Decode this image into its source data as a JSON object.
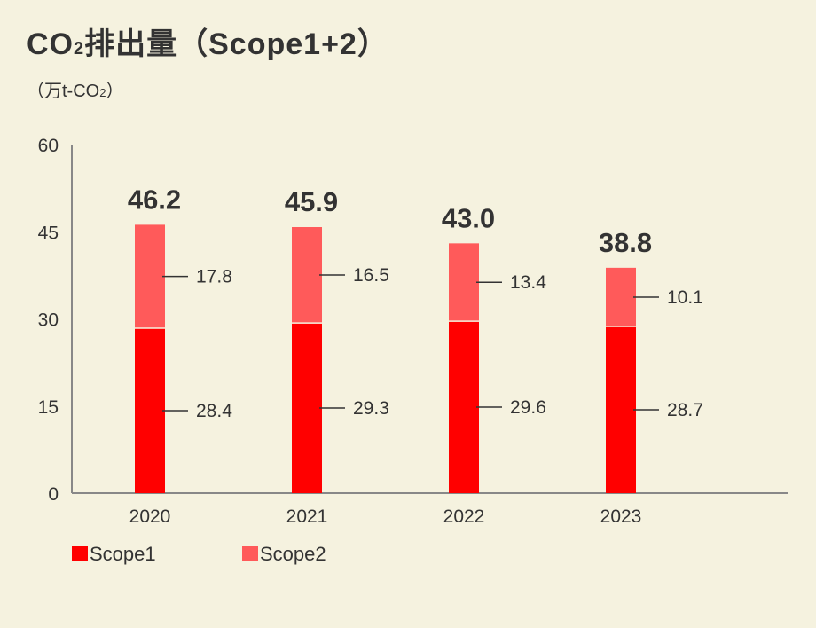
{
  "title_main": "CO",
  "title_sub": "2",
  "title_rest": "排出量（Scope1+2）",
  "unit_main": "（万t-CO",
  "unit_sub": "2",
  "unit_rest": "）",
  "colors": {
    "background": "#f5f2df",
    "scope1": "#ff0000",
    "scope2": "#ff5a5a",
    "axis": "#888888",
    "text": "#333333"
  },
  "chart_data": {
    "type": "bar",
    "stacked": true,
    "categories": [
      "2020",
      "2021",
      "2022",
      "2023"
    ],
    "series": [
      {
        "name": "Scope1",
        "values": [
          28.4,
          29.3,
          29.6,
          28.7
        ],
        "labels": [
          "28.4",
          "29.3",
          "29.6",
          "28.7"
        ],
        "color": "#ff0000"
      },
      {
        "name": "Scope2",
        "values": [
          17.8,
          16.5,
          13.4,
          10.1
        ],
        "labels": [
          "17.8",
          "16.5",
          "13.4",
          "10.1"
        ],
        "color": "#ff5a5a"
      }
    ],
    "totals": [
      "46.2",
      "45.9",
      "43.0",
      "38.8"
    ],
    "yticks": [
      "0",
      "15",
      "30",
      "45",
      "60"
    ],
    "ylim": [
      0,
      60
    ],
    "grid": false,
    "legend_position": "bottom-left"
  }
}
